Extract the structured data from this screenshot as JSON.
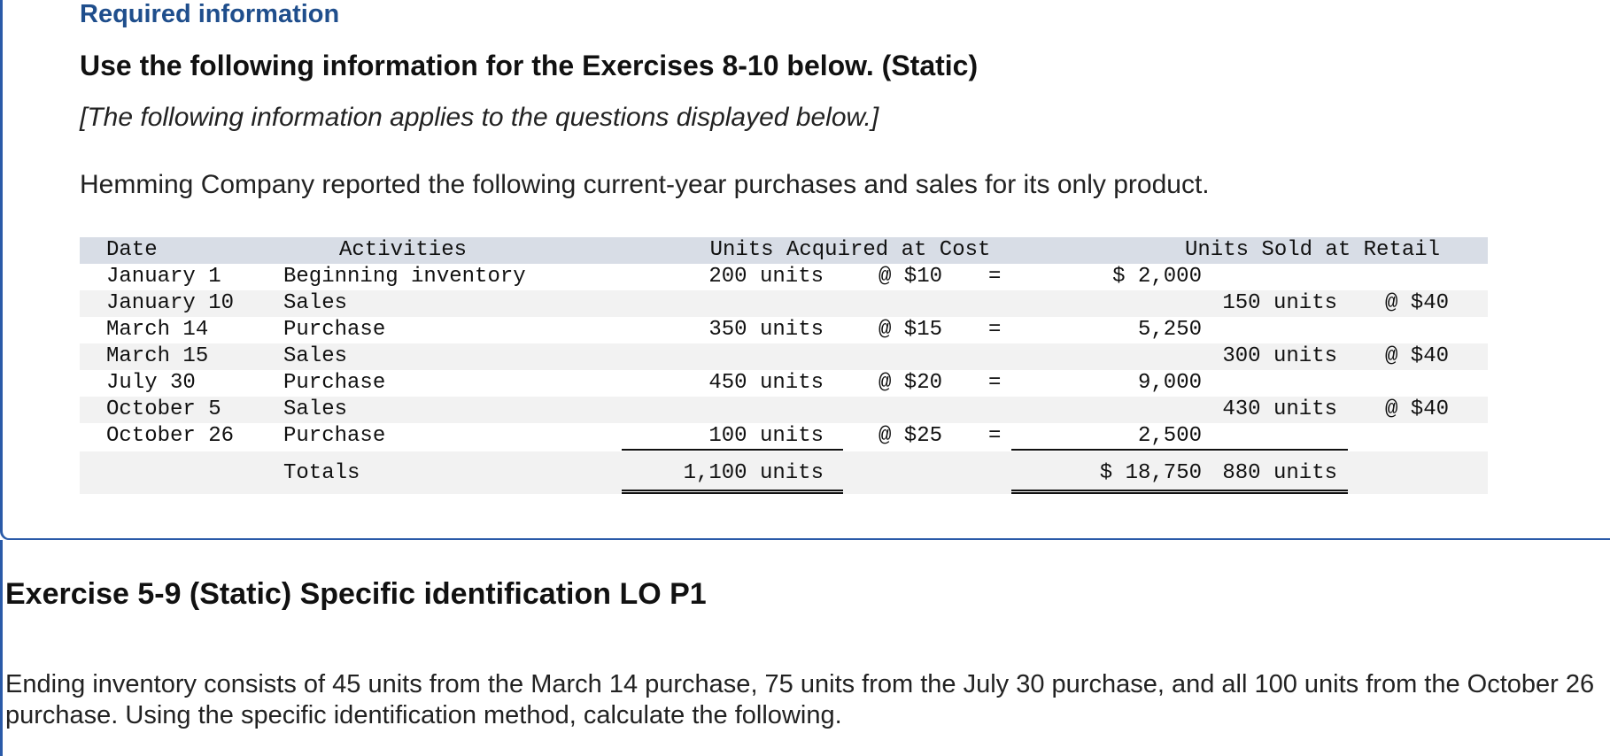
{
  "header": {
    "required": "Required information",
    "title": "Use the following information for the Exercises 8-10 below. (Static)",
    "applies": "[The following information applies to the questions displayed below.]",
    "intro": "Hemming Company reported the following current-year purchases and sales for its only product."
  },
  "table": {
    "headers": {
      "date": "Date",
      "activities": "Activities",
      "acquired": "Units Acquired at Cost",
      "sold": "Units Sold at Retail"
    },
    "rows": [
      {
        "date": "January 1",
        "activity": "Beginning inventory",
        "acq_units": "200 units",
        "acq_at": "@ $10",
        "eq": "=",
        "cost": "$ 2,000",
        "sold_units": "",
        "sold_at": ""
      },
      {
        "date": "January 10",
        "activity": "Sales",
        "acq_units": "",
        "acq_at": "",
        "eq": "",
        "cost": "",
        "sold_units": "150 units",
        "sold_at": "@ $40"
      },
      {
        "date": "March 14",
        "activity": "Purchase",
        "acq_units": "350 units",
        "acq_at": "@ $15",
        "eq": "=",
        "cost": "5,250",
        "sold_units": "",
        "sold_at": ""
      },
      {
        "date": "March 15",
        "activity": "Sales",
        "acq_units": "",
        "acq_at": "",
        "eq": "",
        "cost": "",
        "sold_units": "300 units",
        "sold_at": "@ $40"
      },
      {
        "date": "July 30",
        "activity": "Purchase",
        "acq_units": "450 units",
        "acq_at": "@ $20",
        "eq": "=",
        "cost": "9,000",
        "sold_units": "",
        "sold_at": ""
      },
      {
        "date": "October 5",
        "activity": "Sales",
        "acq_units": "",
        "acq_at": "",
        "eq": "",
        "cost": "",
        "sold_units": "430 units",
        "sold_at": "@ $40"
      },
      {
        "date": "October 26",
        "activity": "Purchase",
        "acq_units": "100 units",
        "acq_at": "@ $25",
        "eq": "=",
        "cost": "2,500",
        "sold_units": "",
        "sold_at": ""
      }
    ],
    "totals": {
      "label": "Totals",
      "acq_units": "1,100 units",
      "cost": "$ 18,750",
      "sold_units": "880 units"
    }
  },
  "exercise": {
    "title": "Exercise 5-9 (Static) Specific identification LO P1",
    "text": "Ending inventory consists of 45 units from the March 14 purchase, 75 units from the July 30 purchase, and all 100 units from the October 26 purchase. Using the specific identification method, calculate the following."
  }
}
